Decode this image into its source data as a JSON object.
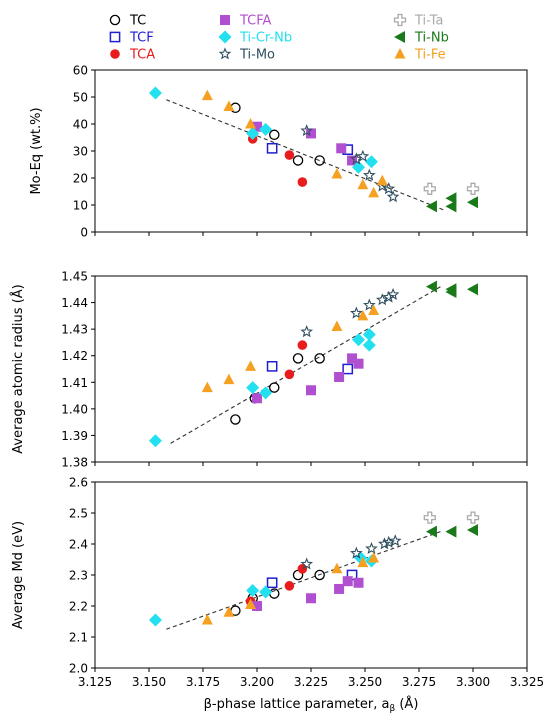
{
  "legend": [
    {
      "label": "TC",
      "marker": "circle-open",
      "color": "#000000"
    },
    {
      "label": "TCF",
      "marker": "square-open",
      "color": "#1f1fd0"
    },
    {
      "label": "TCA",
      "marker": "circle",
      "color": "#e81c1c"
    },
    {
      "label": "TCFA",
      "marker": "square",
      "color": "#b04fd0"
    },
    {
      "label": "Ti-Cr-Nb",
      "marker": "diamond",
      "color": "#22e0f0"
    },
    {
      "label": "Ti-Mo",
      "marker": "star-open",
      "color": "#2f4f5f"
    },
    {
      "label": "Ti-Ta",
      "marker": "plus-open",
      "color": "#aaaaaa"
    },
    {
      "label": "Ti-Nb",
      "marker": "triangle-left",
      "color": "#1a7a1a"
    },
    {
      "label": "Ti-Fe",
      "marker": "triangle-up",
      "color": "#f5a020"
    }
  ],
  "chart_data": [
    {
      "type": "scatter",
      "ylabel": "Mo-Eq (wt.%)",
      "xlim": [
        3.125,
        3.325
      ],
      "ylim": [
        0,
        60
      ],
      "yticks": [
        0,
        10,
        20,
        30,
        40,
        50,
        60
      ],
      "trendline": [
        [
          3.158,
          49
        ],
        [
          3.287,
          8
        ]
      ],
      "series": [
        {
          "name": "TC",
          "points": [
            [
              3.19,
              46
            ],
            [
              3.208,
              36
            ],
            [
              3.219,
              26.5
            ],
            [
              3.229,
              26.5
            ]
          ]
        },
        {
          "name": "TCF",
          "points": [
            [
              3.207,
              31
            ],
            [
              3.242,
              30.5
            ]
          ]
        },
        {
          "name": "TCA",
          "points": [
            [
              3.198,
              34.5
            ],
            [
              3.215,
              28.5
            ],
            [
              3.221,
              18.5
            ]
          ]
        },
        {
          "name": "TCFA",
          "points": [
            [
              3.2,
              39
            ],
            [
              3.225,
              36.5
            ],
            [
              3.239,
              31
            ],
            [
              3.244,
              26.5
            ]
          ]
        },
        {
          "name": "Ti-Cr-Nb",
          "points": [
            [
              3.153,
              51.5
            ],
            [
              3.198,
              36.5
            ],
            [
              3.204,
              38
            ],
            [
              3.247,
              24
            ],
            [
              3.253,
              26
            ]
          ]
        },
        {
          "name": "Ti-Mo",
          "points": [
            [
              3.223,
              37.5
            ],
            [
              3.246,
              27
            ],
            [
              3.249,
              28
            ],
            [
              3.252,
              21
            ],
            [
              3.258,
              17
            ],
            [
              3.261,
              16
            ],
            [
              3.263,
              13
            ]
          ]
        },
        {
          "name": "Ti-Ta",
          "points": [
            [
              3.28,
              16
            ],
            [
              3.3,
              16
            ]
          ]
        },
        {
          "name": "Ti-Nb",
          "points": [
            [
              3.281,
              9.5
            ],
            [
              3.29,
              12.5
            ],
            [
              3.29,
              9.5
            ],
            [
              3.3,
              11
            ]
          ]
        },
        {
          "name": "Ti-Fe",
          "points": [
            [
              3.177,
              50.5
            ],
            [
              3.187,
              46.5
            ],
            [
              3.197,
              40
            ],
            [
              3.237,
              21.5
            ],
            [
              3.249,
              17.5
            ],
            [
              3.254,
              14.5
            ],
            [
              3.258,
              19
            ]
          ]
        }
      ]
    },
    {
      "type": "scatter",
      "ylabel": "Average atomic radius (Å)",
      "xlim": [
        3.125,
        3.325
      ],
      "ylim": [
        1.38,
        1.45
      ],
      "yticks": [
        "1.38",
        "1.39",
        "1.40",
        "1.41",
        "1.42",
        "1.43",
        "1.44",
        "1.45"
      ],
      "trendline": [
        [
          3.16,
          1.387
        ],
        [
          3.285,
          1.446
        ]
      ],
      "series": [
        {
          "name": "TC",
          "points": [
            [
              3.19,
              1.396
            ],
            [
              3.199,
              1.404
            ],
            [
              3.208,
              1.408
            ],
            [
              3.219,
              1.419
            ],
            [
              3.229,
              1.419
            ]
          ]
        },
        {
          "name": "TCF",
          "points": [
            [
              3.207,
              1.416
            ],
            [
              3.242,
              1.415
            ]
          ]
        },
        {
          "name": "TCA",
          "points": [
            [
              3.215,
              1.413
            ],
            [
              3.221,
              1.424
            ]
          ]
        },
        {
          "name": "TCFA",
          "points": [
            [
              3.2,
              1.404
            ],
            [
              3.225,
              1.407
            ],
            [
              3.238,
              1.412
            ],
            [
              3.244,
              1.419
            ],
            [
              3.247,
              1.417
            ]
          ]
        },
        {
          "name": "Ti-Cr-Nb",
          "points": [
            [
              3.153,
              1.388
            ],
            [
              3.198,
              1.408
            ],
            [
              3.204,
              1.406
            ],
            [
              3.247,
              1.426
            ],
            [
              3.252,
              1.428
            ],
            [
              3.252,
              1.424
            ]
          ]
        },
        {
          "name": "Ti-Mo",
          "points": [
            [
              3.223,
              1.429
            ],
            [
              3.246,
              1.436
            ],
            [
              3.252,
              1.439
            ],
            [
              3.258,
              1.441
            ],
            [
              3.261,
              1.442
            ],
            [
              3.263,
              1.443
            ]
          ]
        },
        {
          "name": "Ti-Nb",
          "points": [
            [
              3.281,
              1.446
            ],
            [
              3.29,
              1.445
            ],
            [
              3.29,
              1.444
            ],
            [
              3.3,
              1.445
            ]
          ]
        },
        {
          "name": "Ti-Fe",
          "points": [
            [
              3.177,
              1.408
            ],
            [
              3.187,
              1.411
            ],
            [
              3.197,
              1.416
            ],
            [
              3.237,
              1.431
            ],
            [
              3.249,
              1.435
            ],
            [
              3.254,
              1.437
            ]
          ]
        }
      ]
    },
    {
      "type": "scatter",
      "ylabel": "Average Md (eV)",
      "xlabel": "β-phase lattice parameter, aβ (Å)",
      "xlim": [
        3.125,
        3.325
      ],
      "ylim": [
        2.0,
        2.6
      ],
      "yticks": [
        "2.0",
        "2.1",
        "2.2",
        "2.3",
        "2.4",
        "2.5",
        "2.6"
      ],
      "xticks": [
        "3.125",
        "3.150",
        "3.175",
        "3.200",
        "3.225",
        "3.250",
        "3.275",
        "3.300",
        "3.325"
      ],
      "trendline": [
        [
          3.158,
          2.125
        ],
        [
          3.285,
          2.44
        ]
      ],
      "series": [
        {
          "name": "TC",
          "points": [
            [
              3.19,
              2.185
            ],
            [
              3.198,
              2.225
            ],
            [
              3.208,
              2.24
            ],
            [
              3.219,
              2.3
            ],
            [
              3.229,
              2.3
            ]
          ]
        },
        {
          "name": "TCF",
          "points": [
            [
              3.207,
              2.275
            ],
            [
              3.244,
              2.3
            ]
          ]
        },
        {
          "name": "TCA",
          "points": [
            [
              3.197,
              2.215
            ],
            [
              3.215,
              2.265
            ],
            [
              3.221,
              2.32
            ]
          ]
        },
        {
          "name": "TCFA",
          "points": [
            [
              3.2,
              2.2
            ],
            [
              3.225,
              2.225
            ],
            [
              3.238,
              2.255
            ],
            [
              3.242,
              2.28
            ],
            [
              3.247,
              2.275
            ]
          ]
        },
        {
          "name": "Ti-Cr-Nb",
          "points": [
            [
              3.153,
              2.155
            ],
            [
              3.198,
              2.25
            ],
            [
              3.204,
              2.245
            ],
            [
              3.248,
              2.355
            ],
            [
              3.253,
              2.345
            ]
          ]
        },
        {
          "name": "Ti-Mo",
          "points": [
            [
              3.223,
              2.335
            ],
            [
              3.246,
              2.37
            ],
            [
              3.253,
              2.385
            ],
            [
              3.259,
              2.4
            ],
            [
              3.261,
              2.405
            ],
            [
              3.264,
              2.41
            ]
          ]
        },
        {
          "name": "Ti-Ta",
          "points": [
            [
              3.28,
              2.485
            ],
            [
              3.3,
              2.485
            ]
          ]
        },
        {
          "name": "Ti-Nb",
          "points": [
            [
              3.281,
              2.44
            ],
            [
              3.29,
              2.44
            ],
            [
              3.3,
              2.445
            ]
          ]
        },
        {
          "name": "Ti-Fe",
          "points": [
            [
              3.177,
              2.155
            ],
            [
              3.187,
              2.18
            ],
            [
              3.197,
              2.205
            ],
            [
              3.237,
              2.32
            ],
            [
              3.249,
              2.34
            ],
            [
              3.254,
              2.355
            ]
          ]
        }
      ]
    }
  ]
}
